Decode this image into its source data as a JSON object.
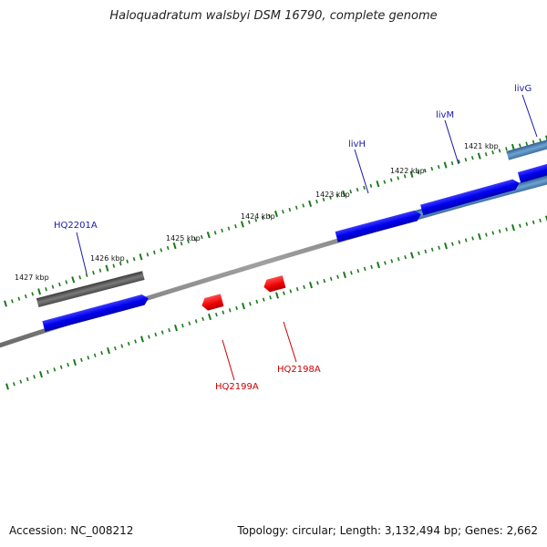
{
  "title": "Haloquadratum walsbyi DSM 16790, complete genome",
  "accession": "Accession: NC_008212",
  "summary": "Topology: circular; Length: 3,132,494 bp; Genes: 2,662",
  "colors": {
    "backbone": "#808080",
    "forward_cds": "#0000ee",
    "reverse_cds": "#ee0000",
    "gene_grey": "#5a5a5a",
    "gene_steel": "#4f86b8",
    "tick": "#1a7a1a",
    "label_forward": "#1a1aaa",
    "label_reverse": "#cc0000"
  },
  "scale_labels": [
    {
      "text": "1427 kbp",
      "kbp": 1427
    },
    {
      "text": "1426 kbp",
      "kbp": 1426
    },
    {
      "text": "1425 kbp",
      "kbp": 1425
    },
    {
      "text": "1424 kbp",
      "kbp": 1424
    },
    {
      "text": "1423 kbp",
      "kbp": 1423
    },
    {
      "text": "1422 kbp",
      "kbp": 1422
    },
    {
      "text": "1421 kbp",
      "kbp": 1421
    }
  ],
  "gene_labels": [
    {
      "text": "HQ2201A",
      "strand": "forward"
    },
    {
      "text": "livH",
      "strand": "forward"
    },
    {
      "text": "livM",
      "strand": "forward"
    },
    {
      "text": "livG",
      "strand": "forward"
    },
    {
      "text": "HQ2199A",
      "strand": "reverse"
    },
    {
      "text": "HQ2198A",
      "strand": "reverse"
    }
  ]
}
